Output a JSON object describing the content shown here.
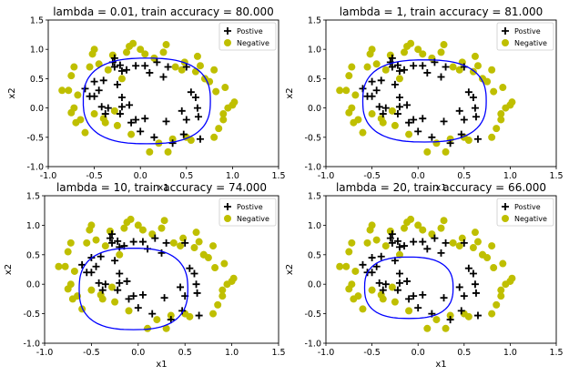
{
  "chart_data": [
    {
      "type": "scatter",
      "title": "lambda = 0.01, train accuracy = 80.000",
      "xlabel": "x1",
      "ylabel": "x2",
      "xlim": [
        -1.0,
        1.5
      ],
      "ylim": [
        -1.0,
        1.5
      ],
      "xticks": [
        "-1.0",
        "-0.5",
        "0.0",
        "0.5",
        "1.0",
        "1.5"
      ],
      "yticks": [
        "-1.0",
        "-0.5",
        "0.0",
        "0.5",
        "1.0",
        "1.5"
      ],
      "legend": [
        "Postive",
        "Negative"
      ],
      "legend_position": "top-right",
      "boundary": {
        "cx": 0.07,
        "cy": 0.12,
        "rx": 0.69,
        "ry": 0.73
      }
    },
    {
      "type": "scatter",
      "title": "lambda = 1, train accuracy = 81.000",
      "xlabel": "x1",
      "ylabel": "x2",
      "xlim": [
        -1.0,
        1.5
      ],
      "ylim": [
        -1.0,
        1.5
      ],
      "xticks": [
        "-1.0",
        "-0.5",
        "0.0",
        "0.5",
        "1.0",
        "1.5"
      ],
      "yticks": [
        "-1.0",
        "-0.5",
        "0.0",
        "0.5",
        "1.0",
        "1.5"
      ],
      "legend": [
        "Postive",
        "Negative"
      ],
      "legend_position": "top-right",
      "boundary": {
        "cx": 0.07,
        "cy": 0.12,
        "rx": 0.67,
        "ry": 0.7
      }
    },
    {
      "type": "scatter",
      "title": "lambda = 10, train accuracy = 74.000",
      "xlabel": "x1",
      "ylabel": "x2",
      "xlim": [
        -1.0,
        1.5
      ],
      "ylim": [
        -1.0,
        1.5
      ],
      "xticks": [
        "-1.0",
        "-0.5",
        "0.0",
        "0.5",
        "1.0",
        "1.5"
      ],
      "yticks": [
        "-1.0",
        "-0.5",
        "0.0",
        "0.5",
        "1.0",
        "1.5"
      ],
      "legend": [
        "Postive",
        "Negative"
      ],
      "legend_position": "top-right",
      "boundary": {
        "cx": -0.05,
        "cy": -0.08,
        "rx": 0.58,
        "ry": 0.69
      }
    },
    {
      "type": "scatter",
      "title": "lambda = 20, train accuracy = 66.000",
      "xlabel": "x1",
      "ylabel": "x2",
      "xlim": [
        -1.0,
        1.5
      ],
      "ylim": [
        -1.0,
        1.5
      ],
      "xticks": [
        "-1.0",
        "-0.5",
        "0.0",
        "0.5",
        "1.0",
        "1.5"
      ],
      "yticks": [
        "-1.0",
        "-0.5",
        "0.0",
        "0.5",
        "1.0",
        "1.5"
      ],
      "legend": [
        "Postive",
        "Negative"
      ],
      "legend_position": "top-right",
      "boundary": {
        "cx": -0.1,
        "cy": -0.06,
        "rx": 0.48,
        "ry": 0.52
      }
    }
  ],
  "series": {
    "positive": {
      "name": "Postive",
      "marker": "plus",
      "color": "#000000",
      "points": [
        [
          -0.6,
          0.33
        ],
        [
          -0.55,
          0.2
        ],
        [
          -0.5,
          0.45
        ],
        [
          -0.5,
          0.2
        ],
        [
          -0.45,
          0.3
        ],
        [
          -0.4,
          0.47
        ],
        [
          -0.42,
          0.02
        ],
        [
          -0.38,
          -0.1
        ],
        [
          -0.35,
          0.0
        ],
        [
          -0.3,
          0.78
        ],
        [
          -0.28,
          0.85
        ],
        [
          -0.28,
          0.7
        ],
        [
          -0.25,
          0.4
        ],
        [
          -0.22,
          0.73
        ],
        [
          -0.2,
          0.63
        ],
        [
          -0.2,
          0.18
        ],
        [
          -0.2,
          0.02
        ],
        [
          -0.22,
          -0.1
        ],
        [
          -0.15,
          0.65
        ],
        [
          -0.12,
          0.05
        ],
        [
          -0.1,
          -0.25
        ],
        [
          -0.05,
          -0.2
        ],
        [
          -0.05,
          0.72
        ],
        [
          0.0,
          -0.4
        ],
        [
          0.05,
          0.72
        ],
        [
          0.05,
          -0.18
        ],
        [
          0.1,
          0.6
        ],
        [
          0.15,
          -0.5
        ],
        [
          0.18,
          0.78
        ],
        [
          0.25,
          0.53
        ],
        [
          0.3,
          0.7
        ],
        [
          0.28,
          -0.23
        ],
        [
          0.35,
          -0.6
        ],
        [
          0.45,
          -0.05
        ],
        [
          0.47,
          -0.45
        ],
        [
          0.5,
          0.7
        ],
        [
          0.5,
          -0.2
        ],
        [
          0.55,
          0.27
        ],
        [
          0.6,
          0.18
        ],
        [
          0.62,
          0.0
        ],
        [
          0.63,
          -0.15
        ],
        [
          0.65,
          -0.53
        ]
      ]
    },
    "negative": {
      "name": "Negative",
      "marker": "circle",
      "color": "#bfbf00",
      "points": [
        [
          -0.85,
          0.3
        ],
        [
          -0.78,
          0.3
        ],
        [
          -0.75,
          0.55
        ],
        [
          -0.75,
          -0.08
        ],
        [
          -0.72,
          0.7
        ],
        [
          -0.72,
          0.0
        ],
        [
          -0.7,
          -0.25
        ],
        [
          -0.68,
          0.22
        ],
        [
          -0.65,
          -0.2
        ],
        [
          -0.6,
          -0.42
        ],
        [
          -0.55,
          0.7
        ],
        [
          -0.52,
          0.92
        ],
        [
          -0.5,
          1.0
        ],
        [
          -0.5,
          -0.1
        ],
        [
          -0.45,
          0.75
        ],
        [
          -0.4,
          -0.18
        ],
        [
          -0.38,
          -0.25
        ],
        [
          -0.35,
          0.65
        ],
        [
          -0.3,
          0.9
        ],
        [
          -0.28,
          -0.05
        ],
        [
          -0.25,
          -0.3
        ],
        [
          -0.2,
          0.5
        ],
        [
          -0.15,
          0.95
        ],
        [
          -0.12,
          1.05
        ],
        [
          -0.1,
          -0.45
        ],
        [
          -0.08,
          1.1
        ],
        [
          0.0,
          1.0
        ],
        [
          0.05,
          0.92
        ],
        [
          0.1,
          -0.75
        ],
        [
          0.15,
          0.85
        ],
        [
          0.2,
          -0.6
        ],
        [
          0.25,
          0.95
        ],
        [
          0.28,
          1.08
        ],
        [
          0.3,
          -0.75
        ],
        [
          0.35,
          -0.53
        ],
        [
          0.38,
          0.7
        ],
        [
          0.45,
          0.65
        ],
        [
          0.48,
          0.78
        ],
        [
          0.5,
          -0.5
        ],
        [
          0.55,
          -0.55
        ],
        [
          0.6,
          0.62
        ],
        [
          0.62,
          0.88
        ],
        [
          0.65,
          0.72
        ],
        [
          0.7,
          0.5
        ],
        [
          0.7,
          0.5
        ],
        [
          0.75,
          0.45
        ],
        [
          0.8,
          0.65
        ],
        [
          0.82,
          0.28
        ],
        [
          0.85,
          -0.35
        ],
        [
          0.8,
          -0.5
        ],
        [
          0.9,
          -0.2
        ],
        [
          0.92,
          0.35
        ],
        [
          0.95,
          0.0
        ],
        [
          1.0,
          0.05
        ],
        [
          1.02,
          0.1
        ],
        [
          0.9,
          -0.1
        ]
      ]
    }
  },
  "colors": {
    "boundary": "#0000ff",
    "axes": "#000000",
    "background": "#ffffff"
  }
}
